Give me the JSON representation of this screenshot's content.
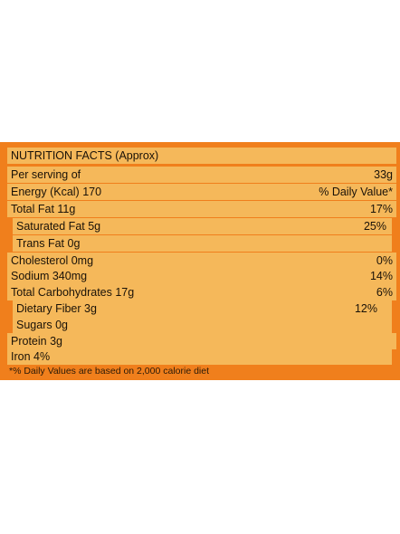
{
  "nutrition": {
    "title": "NUTRITION FACTS (Approx)",
    "rows": [
      {
        "label": "Per serving of",
        "value": "33g"
      },
      {
        "label": "Energy (Kcal) 170",
        "value": "% Daily Value*"
      },
      {
        "label": "Total Fat 11g",
        "value": "17%"
      },
      {
        "label": "Saturated Fat 5g",
        "value": "25%"
      },
      {
        "label": "Trans Fat 0g",
        "value": ""
      },
      {
        "label": "Cholesterol 0mg",
        "value": "0%"
      },
      {
        "label": "Sodium 340mg",
        "value": "14%"
      },
      {
        "label": "Total Carbohydrates 17g",
        "value": "6%"
      },
      {
        "label": "Dietary Fiber 3g",
        "value": "12%"
      },
      {
        "label": "Sugars 0g",
        "value": ""
      },
      {
        "label": "Protein 3g",
        "value": ""
      },
      {
        "label": "Iron 4%",
        "value": ""
      }
    ],
    "footnote": "*% Daily Values are based on 2,000 calorie diet"
  },
  "colors": {
    "panel_background": "#f07f1c",
    "row_background": "#f5b85a",
    "text": "#1a1208"
  }
}
